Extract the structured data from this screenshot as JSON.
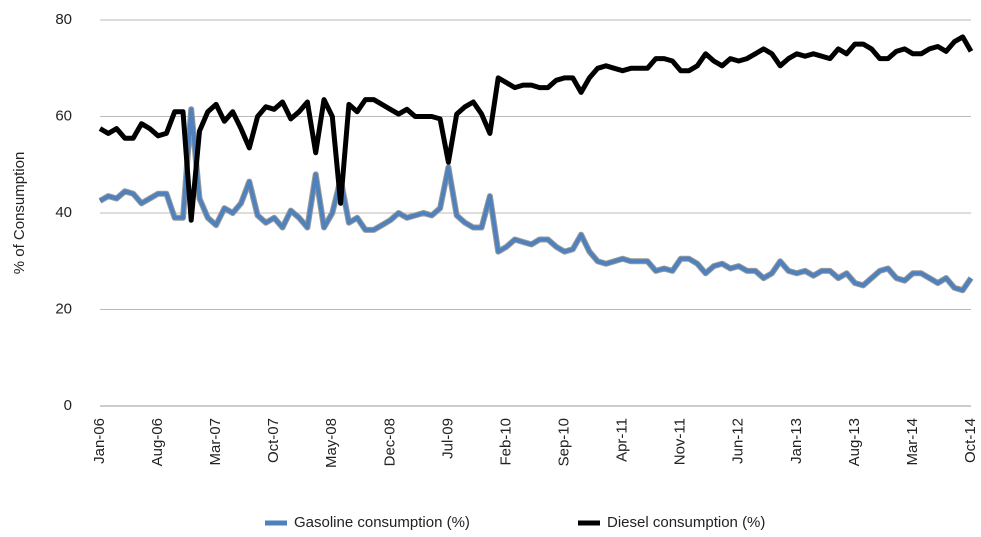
{
  "chart_data": {
    "type": "line",
    "y_label": "% of Consumption",
    "categories": [
      "Jan-06",
      null,
      null,
      null,
      null,
      null,
      null,
      "Aug-06",
      null,
      null,
      null,
      null,
      null,
      null,
      "Mar-07",
      null,
      null,
      null,
      null,
      null,
      null,
      "Oct-07",
      null,
      null,
      null,
      null,
      null,
      null,
      "May-08",
      null,
      null,
      null,
      null,
      null,
      null,
      "Dec-08",
      null,
      null,
      null,
      null,
      null,
      null,
      "Jul-09",
      null,
      null,
      null,
      null,
      null,
      null,
      "Feb-10",
      null,
      null,
      null,
      null,
      null,
      null,
      "Sep-10",
      null,
      null,
      null,
      null,
      null,
      null,
      "Apr-11",
      null,
      null,
      null,
      null,
      null,
      null,
      "Nov-11",
      null,
      null,
      null,
      null,
      null,
      null,
      "Jun-12",
      null,
      null,
      null,
      null,
      null,
      null,
      "Jan-13",
      null,
      null,
      null,
      null,
      null,
      null,
      "Aug-13",
      null,
      null,
      null,
      null,
      null,
      null,
      "Mar-14",
      null,
      null,
      null,
      null,
      null,
      null,
      "Oct-14"
    ],
    "series": [
      {
        "name": "Gasoline consumption (%)",
        "color": "#4f81bd",
        "values": [
          42.5,
          43.5,
          43,
          44.5,
          44,
          42,
          43,
          44,
          44,
          39,
          39,
          61.5,
          43,
          39,
          37.5,
          41,
          40,
          42,
          46.5,
          39.5,
          38,
          39,
          37,
          40.5,
          39,
          37,
          48,
          37,
          40,
          47,
          38,
          39,
          36.5,
          36.5,
          37.5,
          38.5,
          40,
          39,
          39.5,
          40,
          39.5,
          41,
          49.5,
          39.5,
          38,
          37,
          37,
          43.5,
          32,
          33,
          34.5,
          34,
          33.5,
          34.5,
          34.5,
          33,
          32,
          32.5,
          35.5,
          32,
          30,
          29.5,
          30,
          30.5,
          30,
          30,
          30,
          28,
          28.5,
          28,
          30.5,
          30.5,
          29.5,
          27.5,
          29,
          29.5,
          28.5,
          29,
          28,
          28,
          26.5,
          27.5,
          30,
          28,
          27.5,
          28,
          27,
          28,
          28,
          26.5,
          27.5,
          25.5,
          25,
          26.5,
          28,
          28.5,
          26.5,
          26,
          27.5,
          27.5,
          26.5,
          25.5,
          26.5,
          24.5,
          24,
          26.5
        ]
      },
      {
        "name": "Diesel consumption (%)",
        "color": "#000000",
        "values": [
          57.5,
          56.5,
          57.5,
          55.5,
          55.5,
          58.5,
          57.5,
          56,
          56.5,
          61,
          61,
          38.5,
          57,
          61,
          62.5,
          59,
          61,
          57.5,
          53.5,
          60,
          62,
          61.5,
          63,
          59.5,
          61,
          63,
          52.5,
          63.5,
          60,
          42,
          62.5,
          61,
          63.5,
          63.5,
          62.5,
          61.5,
          60.5,
          61.5,
          60,
          60,
          60,
          59.5,
          50.5,
          60.5,
          62,
          63,
          60.5,
          56.5,
          68,
          67,
          66,
          66.5,
          66.5,
          66,
          66,
          67.5,
          68,
          68,
          65,
          68,
          70,
          70.5,
          70,
          69.5,
          70,
          70,
          70,
          72,
          72,
          71.5,
          69.5,
          69.5,
          70.5,
          73,
          71.5,
          70.5,
          72,
          71.5,
          72,
          73,
          74,
          73,
          70.5,
          72,
          73,
          72.5,
          73,
          72.5,
          72,
          74,
          73,
          75,
          75,
          74,
          72,
          72,
          73.5,
          74,
          73,
          73,
          74,
          74.5,
          73.5,
          75.5,
          76.5,
          73.5
        ]
      }
    ],
    "ylim": [
      0,
      80
    ],
    "yticks": [
      0,
      20,
      40,
      60,
      80
    ],
    "grid": true,
    "legend": "bottom"
  }
}
